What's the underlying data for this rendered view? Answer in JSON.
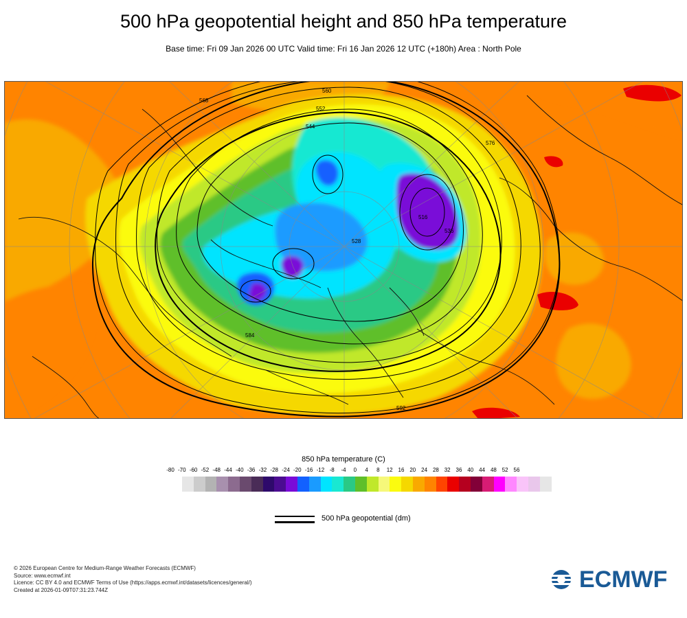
{
  "header": {
    "title": "500 hPa geopotential height and 850 hPa temperature",
    "subtitle": "Base time: Fri 09 Jan 2026 00 UTC Valid time: Fri 16 Jan 2026 12 UTC (+180h) Area : North Pole"
  },
  "map": {
    "contour_labels": [
      "516",
      "528",
      "536",
      "544",
      "552",
      "560",
      "568",
      "576",
      "584",
      "592"
    ]
  },
  "legend": {
    "temperature_title": "850 hPa temperature (C)",
    "ticks": [
      "-80",
      "-70",
      "-60",
      "-52",
      "-48",
      "-44",
      "-40",
      "-36",
      "-32",
      "-28",
      "-24",
      "-20",
      "-16",
      "-12",
      "-8",
      "-4",
      "0",
      "4",
      "8",
      "12",
      "16",
      "20",
      "24",
      "28",
      "32",
      "36",
      "40",
      "44",
      "48",
      "52",
      "56"
    ],
    "colors": [
      "#e6e6e6",
      "#cccccc",
      "#b3b3b3",
      "#a890ae",
      "#8c6b8f",
      "#6a4a6e",
      "#4a2c57",
      "#2e0a6b",
      "#4b0c91",
      "#7a0bd8",
      "#1261ff",
      "#1a9bff",
      "#00e4ff",
      "#19e8d2",
      "#2ac985",
      "#5fbf2a",
      "#c0e82a",
      "#f6f87a",
      "#fbfb0f",
      "#f5d800",
      "#f9a900",
      "#ff8400",
      "#ff4400",
      "#ea0000",
      "#b5001f",
      "#820038",
      "#d71c74",
      "#ff00ff",
      "#ff87ff",
      "#f9c4f9",
      "#e9c7eb",
      "#e6e6e6"
    ],
    "geopotential_label": "500 hPa geopotential (dm)"
  },
  "footer": {
    "line1": "© 2026 European Centre for Medium-Range Weather Forecasts (ECMWF)",
    "line2": "Source: www.ecmwf.int",
    "line3": "Licence: CC BY 4.0 and ECMWF Terms of Use (https://apps.ecmwf.int/datasets/licences/general/)",
    "line4": "Created at 2026-01-09T07:31:23.744Z"
  },
  "logo": {
    "text": "ECMWF",
    "color": "#1a5a96"
  }
}
